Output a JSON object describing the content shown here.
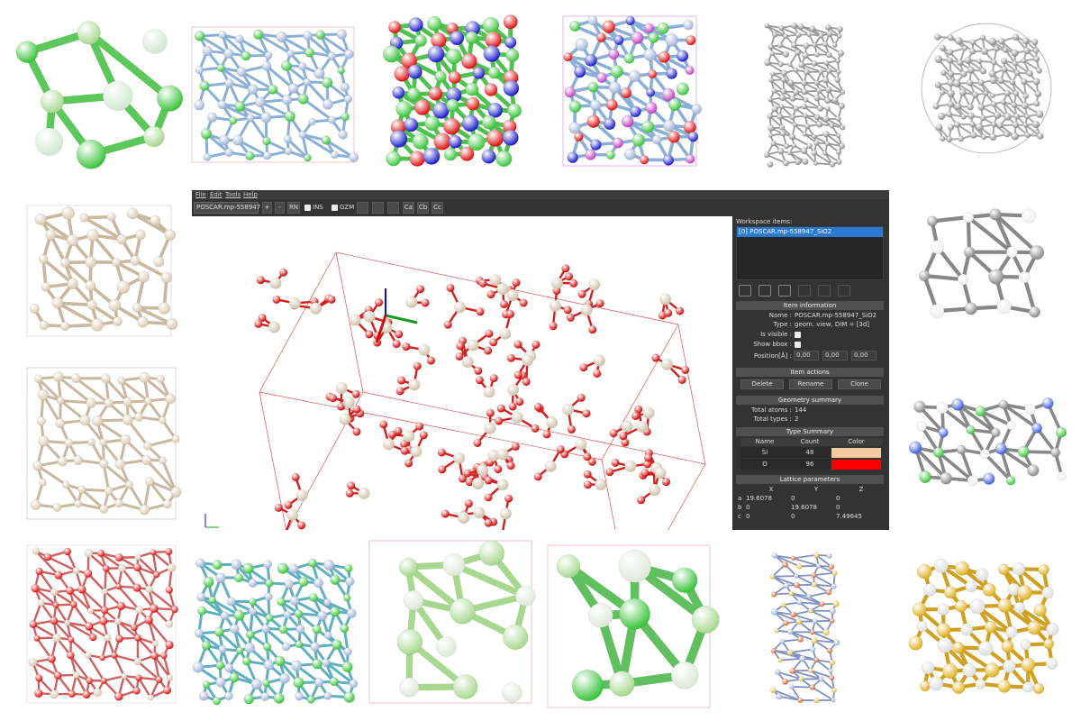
{
  "menu": [
    "File",
    "Edit",
    "Tools",
    "Help"
  ],
  "toolbar": {
    "file": "POSCAR.mp-558947",
    "buttons": [
      "+",
      "-",
      "RN"
    ],
    "toggles": [
      "INS",
      "GZM"
    ],
    "axes": [
      "Ca",
      "Cb",
      "Cc"
    ]
  },
  "workspace": {
    "label": "Workspace items:",
    "items": [
      "[0] POSCAR.mp-558947_SiO2"
    ]
  },
  "item_information": {
    "title": "Item information",
    "fields": [
      {
        "label": "Name :",
        "value": "POSCAR.mp-558947_SiO2"
      },
      {
        "label": "Type :",
        "value": "geom. view, DIM = [3d]"
      }
    ],
    "visible_label": "Is visible :",
    "bbox_label": "Show bbox :",
    "position_label": "Position[Å] :",
    "position": [
      "0,00",
      "0,00",
      "0,00"
    ]
  },
  "item_actions": {
    "title": "Item actions",
    "buttons": [
      "Delete",
      "Rename",
      "Clone"
    ]
  },
  "geometry_summary": {
    "title": "Geometry summary",
    "rows": [
      {
        "label": "Total atoms :",
        "value": "144"
      },
      {
        "label": "Total types :",
        "value": "2"
      }
    ]
  },
  "type_summary": {
    "title": "Type Summary",
    "columns": [
      "Name",
      "Count",
      "Color"
    ],
    "rows": [
      {
        "name": "Si",
        "count": "48",
        "color": "#f5c8a0"
      },
      {
        "name": "O",
        "count": "96",
        "color": "#ff0000"
      }
    ]
  },
  "lattice": {
    "title": "Lattice parameters",
    "columns": [
      "X",
      "Y",
      "Z"
    ],
    "rows": [
      [
        "a",
        "19.6078",
        "0",
        "0"
      ],
      [
        "b",
        "0",
        "19.6078",
        "0"
      ],
      [
        "c",
        "0",
        "0",
        "7.49645"
      ]
    ]
  }
}
